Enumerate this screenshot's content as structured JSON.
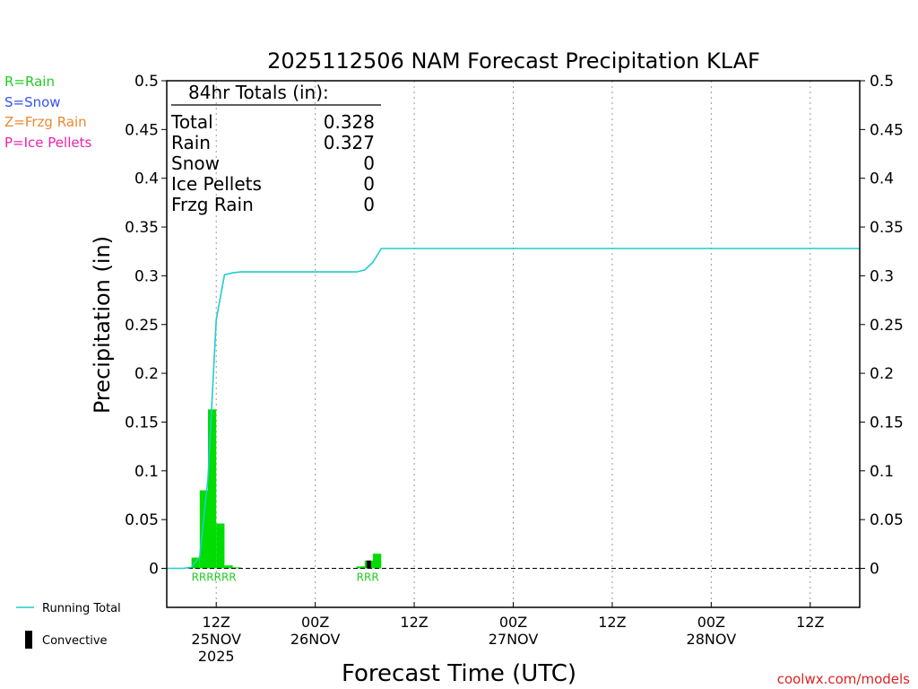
{
  "title": "2025112506 NAM Forecast Precipitation KLAF",
  "legend_left": [
    {
      "label": "R=Rain",
      "color": "#22cc22"
    },
    {
      "label": "S=Snow",
      "color": "#3355ee"
    },
    {
      "label": "Z=Frzg Rain",
      "color": "#ee8833"
    },
    {
      "label": "P=Ice Pellets",
      "color": "#ee22aa"
    }
  ],
  "totals": {
    "header": "84hr Totals (in):",
    "rows": [
      {
        "label": "Total",
        "value": "0.328"
      },
      {
        "label": "Rain",
        "value": "0.327"
      },
      {
        "label": "Snow",
        "value": "0"
      },
      {
        "label": "Ice Pellets",
        "value": "0"
      },
      {
        "label": "Frzg Rain",
        "value": "0"
      }
    ]
  },
  "bottom_legend": {
    "running_total": "Running Total",
    "convective": "Convective"
  },
  "credit": "coolwx.com/models",
  "colors": {
    "rain": "#00dd00",
    "running_total": "#22cccc",
    "convective": "#000000",
    "credit": "#dd2222"
  },
  "chart_data": {
    "type": "bar",
    "title": "2025112506 NAM Forecast Precipitation KLAF",
    "xlabel": "Forecast Time (UTC)",
    "ylabel": "Precipitation (in)",
    "ylim": [
      -0.04,
      0.5
    ],
    "yticks": [
      0,
      0.05,
      0.1,
      0.15,
      0.2,
      0.25,
      0.3,
      0.35,
      0.4,
      0.45,
      0.5
    ],
    "xlim_hours": [
      0,
      84
    ],
    "x_ticks": [
      {
        "hour": 6,
        "lines": [
          "12Z",
          "25NOV",
          "2025"
        ]
      },
      {
        "hour": 18,
        "lines": [
          "00Z",
          "26NOV"
        ]
      },
      {
        "hour": 30,
        "lines": [
          "12Z"
        ]
      },
      {
        "hour": 42,
        "lines": [
          "00Z",
          "27NOV"
        ]
      },
      {
        "hour": 54,
        "lines": [
          "12Z"
        ]
      },
      {
        "hour": 66,
        "lines": [
          "00Z",
          "28NOV"
        ]
      },
      {
        "hour": 78,
        "lines": [
          "12Z"
        ]
      }
    ],
    "grid": "vertical dotted",
    "precip_bars": [
      {
        "hour": 4,
        "value": 0.011,
        "type": "R"
      },
      {
        "hour": 5,
        "value": 0.08,
        "type": "R"
      },
      {
        "hour": 6,
        "value": 0.163,
        "type": "R"
      },
      {
        "hour": 7,
        "value": 0.046,
        "type": "R"
      },
      {
        "hour": 8,
        "value": 0.003,
        "type": "R"
      },
      {
        "hour": 9,
        "value": 0.001,
        "type": "R"
      },
      {
        "hour": 24,
        "value": 0.002,
        "type": "R"
      },
      {
        "hour": 25,
        "value": 0.008,
        "type": "R"
      },
      {
        "hour": 26,
        "value": 0.015,
        "type": "R"
      }
    ],
    "convective_bars": [
      {
        "hour": 25,
        "value": 0.008
      }
    ],
    "type_labels": [
      {
        "start_hour": 4,
        "text": "RRRRRR"
      },
      {
        "start_hour": 24,
        "text": "RRR"
      }
    ],
    "running_total": {
      "hours": [
        0,
        1,
        2,
        3,
        4,
        5,
        6,
        7,
        8,
        9,
        10,
        12,
        15,
        18,
        21,
        23,
        24,
        25,
        26,
        84
      ],
      "values": [
        0,
        0,
        0,
        0.001,
        0.012,
        0.092,
        0.255,
        0.301,
        0.303,
        0.304,
        0.304,
        0.304,
        0.304,
        0.304,
        0.304,
        0.304,
        0.306,
        0.314,
        0.328,
        0.328
      ]
    }
  }
}
